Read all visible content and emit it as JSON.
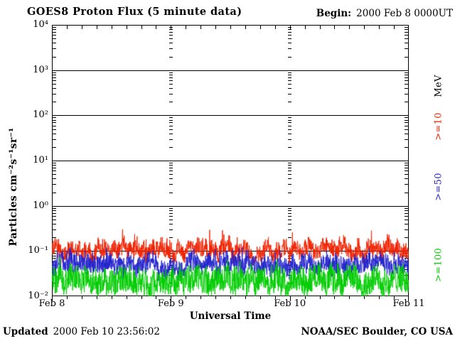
{
  "header": {
    "begin_label": "Begin:",
    "begin_value": "2000 Feb 8 0000UT"
  },
  "footer": {
    "updated_label": "Updated",
    "updated_value": "2000 Feb 10 23:56:02",
    "credit": "NOAA/SEC Boulder, CO USA"
  },
  "chart_data": {
    "type": "line",
    "title": "GOES8 Proton Flux (5 minute data)",
    "xlabel": "Universal Time",
    "ylabel": "Particles cm⁻²s⁻¹sr⁻¹",
    "x_start": "2000 Feb 8 0000UT",
    "x_end": "2000 Feb 11 0000UT",
    "x_tick_labels": [
      "Feb 8",
      "Feb 9",
      "Feb 10",
      "Feb 11"
    ],
    "x_days": 3,
    "x_minor_ticks_per_day": 8,
    "y_scale": "log",
    "y_log_min": -2,
    "y_log_max": 4,
    "y_tick_labels": [
      "10⁴",
      "10³",
      "10²",
      "10¹",
      "10⁰",
      "10⁻¹",
      "10⁻²"
    ],
    "grid": {
      "horizontal": "solid line at each decade",
      "vertical": "dashed tick columns at day boundaries"
    },
    "legend_title": "MeV",
    "axis_color": "#000000",
    "background_color": "#ffffff",
    "series": [
      {
        "label": ">=10",
        "energy": ">=10 MeV",
        "color": "#ee2200",
        "median_flux": 0.105,
        "flux_range": [
          0.05,
          0.4
        ],
        "base_log10": -0.98,
        "noise_dex": 0.18,
        "spike_dex": 0.25,
        "spike_probability": 0.03
      },
      {
        "label": ">=50",
        "energy": ">=50 MeV",
        "color": "#2222cc",
        "median_flux": 0.05,
        "flux_range": [
          0.025,
          0.18
        ],
        "base_log10": -1.3,
        "noise_dex": 0.2,
        "spike_dex": 0.25,
        "spike_probability": 0.03
      },
      {
        "label": ">=100",
        "energy": ">=100 MeV",
        "color": "#00cc00",
        "median_flux": 0.023,
        "flux_range": [
          0.01,
          0.12
        ],
        "base_log10": -1.64,
        "noise_dex": 0.28,
        "spike_dex": 0.4,
        "spike_probability": 0.02
      }
    ]
  }
}
